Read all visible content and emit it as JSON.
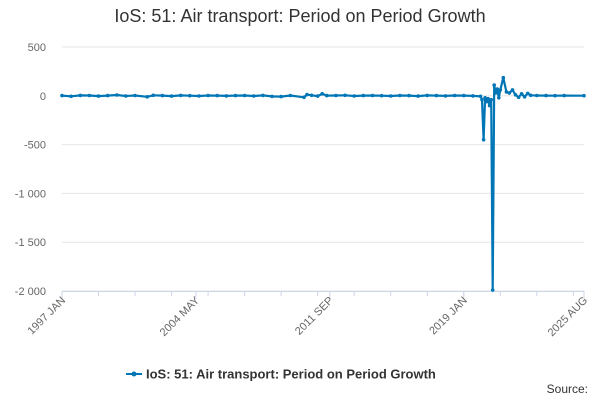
{
  "title": "IoS: 51: Air transport: Period on Period Growth",
  "source_label": "Source:",
  "colors": {
    "series": "#0076b6",
    "grid": "#e6e6e6",
    "axis": "#ccd6eb"
  },
  "chart_data": {
    "type": "line",
    "title": "IoS: 51: Air transport: Period on Period Growth",
    "xlabel": "",
    "ylabel": "",
    "ylim": [
      -2000,
      500
    ],
    "yticks": [
      500,
      0,
      -500,
      -1000,
      -1500,
      -2000
    ],
    "ytick_labels": [
      "500",
      "0",
      "-500",
      "-1 000",
      "-1 500",
      "-2 000"
    ],
    "xlim": [
      "1997 JAN",
      "2025 AUG"
    ],
    "xtick_labels": [
      "1997 JAN",
      "2004 MAY",
      "2011 SEP",
      "2019 JAN",
      "2025 AUG"
    ],
    "grid": true,
    "legend_position": "bottom",
    "series": [
      {
        "name": "IoS: 51: Air transport: Period on Period Growth",
        "points": [
          [
            "1997 JAN",
            2
          ],
          [
            "1997 JUL",
            -5
          ],
          [
            "1998 JAN",
            4
          ],
          [
            "1998 JUL",
            3
          ],
          [
            "1999 JAN",
            -3
          ],
          [
            "1999 JUL",
            2
          ],
          [
            "2000 JAN",
            8
          ],
          [
            "2000 JUL",
            -2
          ],
          [
            "2001 JAN",
            3
          ],
          [
            "2001 SEP",
            -10
          ],
          [
            "2002 JAN",
            5
          ],
          [
            "2002 JUL",
            2
          ],
          [
            "2003 JAN",
            -3
          ],
          [
            "2003 JUL",
            4
          ],
          [
            "2004 JAN",
            1
          ],
          [
            "2004 JUL",
            -2
          ],
          [
            "2005 JAN",
            3
          ],
          [
            "2005 JUL",
            2
          ],
          [
            "2006 JAN",
            -1
          ],
          [
            "2006 JUL",
            2
          ],
          [
            "2007 JAN",
            3
          ],
          [
            "2007 JUL",
            -2
          ],
          [
            "2008 JAN",
            4
          ],
          [
            "2008 JUL",
            -6
          ],
          [
            "2009 JAN",
            -8
          ],
          [
            "2009 JUL",
            3
          ],
          [
            "2010 APR",
            -15
          ],
          [
            "2010 JUN",
            12
          ],
          [
            "2010 SEP",
            5
          ],
          [
            "2011 JAN",
            -3
          ],
          [
            "2011 APR",
            20
          ],
          [
            "2011 JUL",
            2
          ],
          [
            "2012 JAN",
            3
          ],
          [
            "2012 JUL",
            5
          ],
          [
            "2013 JAN",
            -2
          ],
          [
            "2013 JUL",
            2
          ],
          [
            "2014 JAN",
            3
          ],
          [
            "2014 JUL",
            1
          ],
          [
            "2015 JAN",
            -2
          ],
          [
            "2015 JUL",
            3
          ],
          [
            "2016 JAN",
            2
          ],
          [
            "2016 JUL",
            -3
          ],
          [
            "2017 JAN",
            4
          ],
          [
            "2017 JUL",
            2
          ],
          [
            "2018 JAN",
            -1
          ],
          [
            "2018 JUL",
            3
          ],
          [
            "2019 JAN",
            2
          ],
          [
            "2019 JUL",
            -1
          ],
          [
            "2019 DEC",
            -5
          ],
          [
            "2020 JAN",
            -40
          ],
          [
            "2020 FEB",
            -450
          ],
          [
            "2020 MAR",
            -20
          ],
          [
            "2020 APR",
            -60
          ],
          [
            "2020 MAY",
            -30
          ],
          [
            "2020 JUN",
            -100
          ],
          [
            "2020 JUL",
            -40
          ],
          [
            "2020 AUG",
            -1990
          ],
          [
            "2020 SEP",
            110
          ],
          [
            "2020 OCT",
            30
          ],
          [
            "2020 NOV",
            70
          ],
          [
            "2020 DEC",
            -20
          ],
          [
            "2021 JAN",
            60
          ],
          [
            "2021 MAR",
            185
          ],
          [
            "2021 MAY",
            40
          ],
          [
            "2021 JUL",
            30
          ],
          [
            "2021 SEP",
            60
          ],
          [
            "2021 NOV",
            10
          ],
          [
            "2022 JAN",
            -15
          ],
          [
            "2022 MAR",
            20
          ],
          [
            "2022 MAY",
            -10
          ],
          [
            "2022 JUL",
            25
          ],
          [
            "2022 SEP",
            5
          ],
          [
            "2023 JAN",
            3
          ],
          [
            "2023 JUL",
            2
          ],
          [
            "2024 JAN",
            1
          ],
          [
            "2024 JUL",
            2
          ],
          [
            "2025 AUG",
            1
          ]
        ]
      }
    ]
  }
}
